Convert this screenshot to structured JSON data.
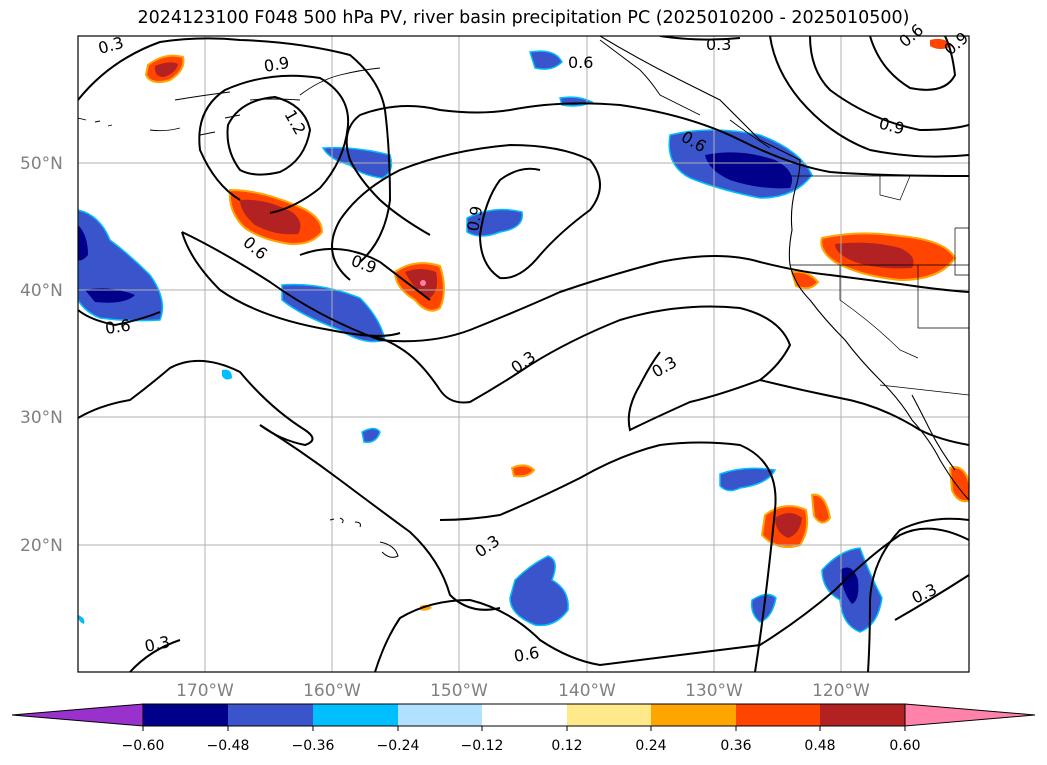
{
  "title": "2024123100 F048 500 hPa PV, river basin precipitation PC (2025010200 - 2025010500)",
  "lat_labels": [
    "50°N",
    "40°N",
    "30°N",
    "20°N"
  ],
  "lon_labels": [
    "170°W",
    "160°W",
    "150°W",
    "140°W",
    "130°W",
    "120°W"
  ],
  "contour_labels": [
    "0.3",
    "0.9",
    "0.6",
    "1.2",
    "0.6",
    "0.6",
    "0.9",
    "0.9",
    "0.6",
    "0.3",
    "0.3",
    "0.3",
    "0.3",
    "0.6",
    "0.3",
    "0.3",
    "0.9",
    "0.6",
    "0.9"
  ],
  "colorbar": {
    "ticks": [
      "−0.60",
      "−0.48",
      "−0.36",
      "−0.24",
      "−0.12",
      "0.12",
      "0.24",
      "0.36",
      "0.48",
      "0.60"
    ],
    "colors": [
      "#9932cc",
      "#00008b",
      "#3a54cc",
      "#00bfff",
      "#b0e2ff",
      "#ffffff",
      "#ffe98a",
      "#ffa500",
      "#ff4500",
      "#b22222",
      "#ff82ab"
    ]
  }
}
